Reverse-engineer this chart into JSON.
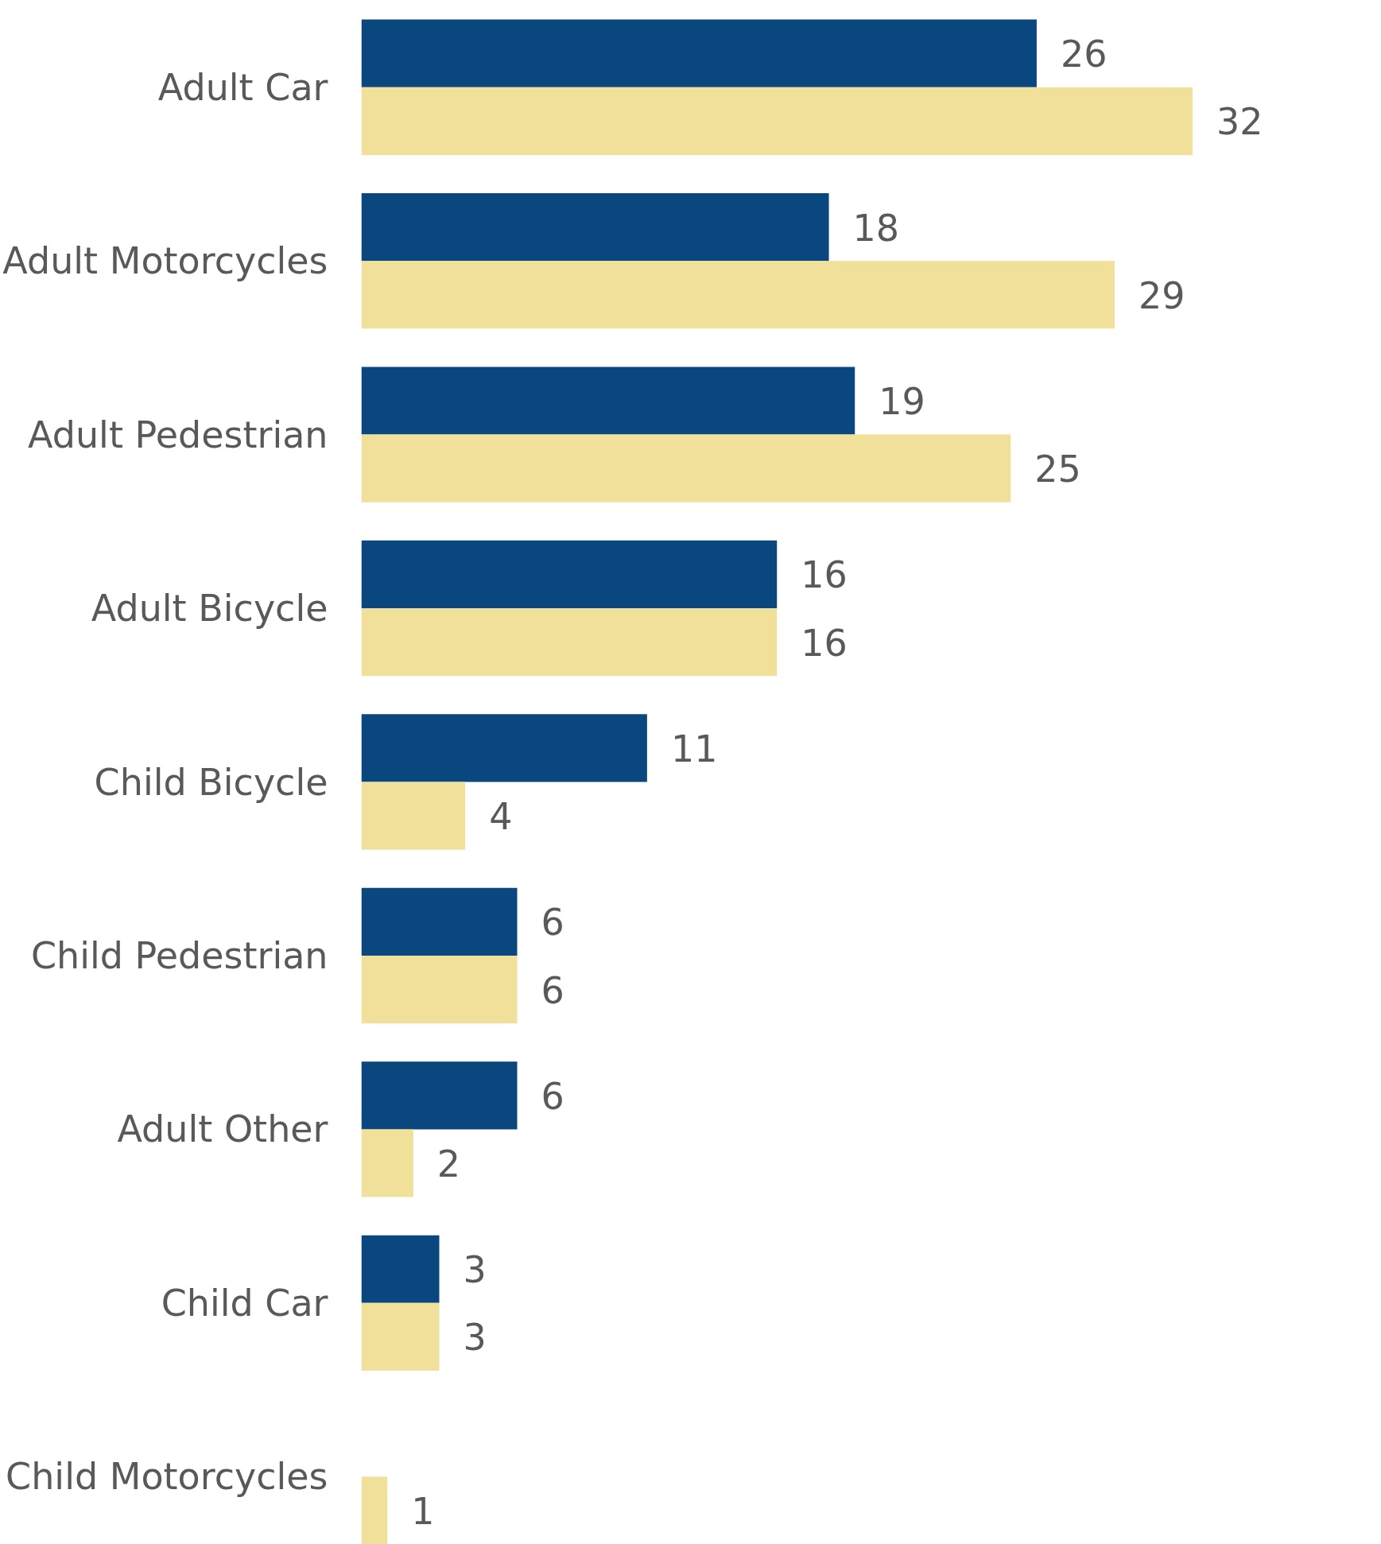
{
  "chart_data": {
    "type": "bar",
    "orientation": "horizontal",
    "categories": [
      "Adult Car",
      "Adult Motorcycles",
      "Adult Pedestrian",
      "Adult Bicycle",
      "Child Bicycle",
      "Child Pedestrian",
      "Adult Other",
      "Child Car",
      "Child Motorcycles"
    ],
    "series": [
      {
        "color": "#0b477f",
        "values": [
          26,
          18,
          19,
          16,
          11,
          6,
          6,
          3,
          null
        ]
      },
      {
        "color": "#f0e09a",
        "values": [
          32,
          29,
          25,
          16,
          4,
          6,
          2,
          3,
          1
        ]
      }
    ],
    "data_labels": true,
    "grid": false
  }
}
